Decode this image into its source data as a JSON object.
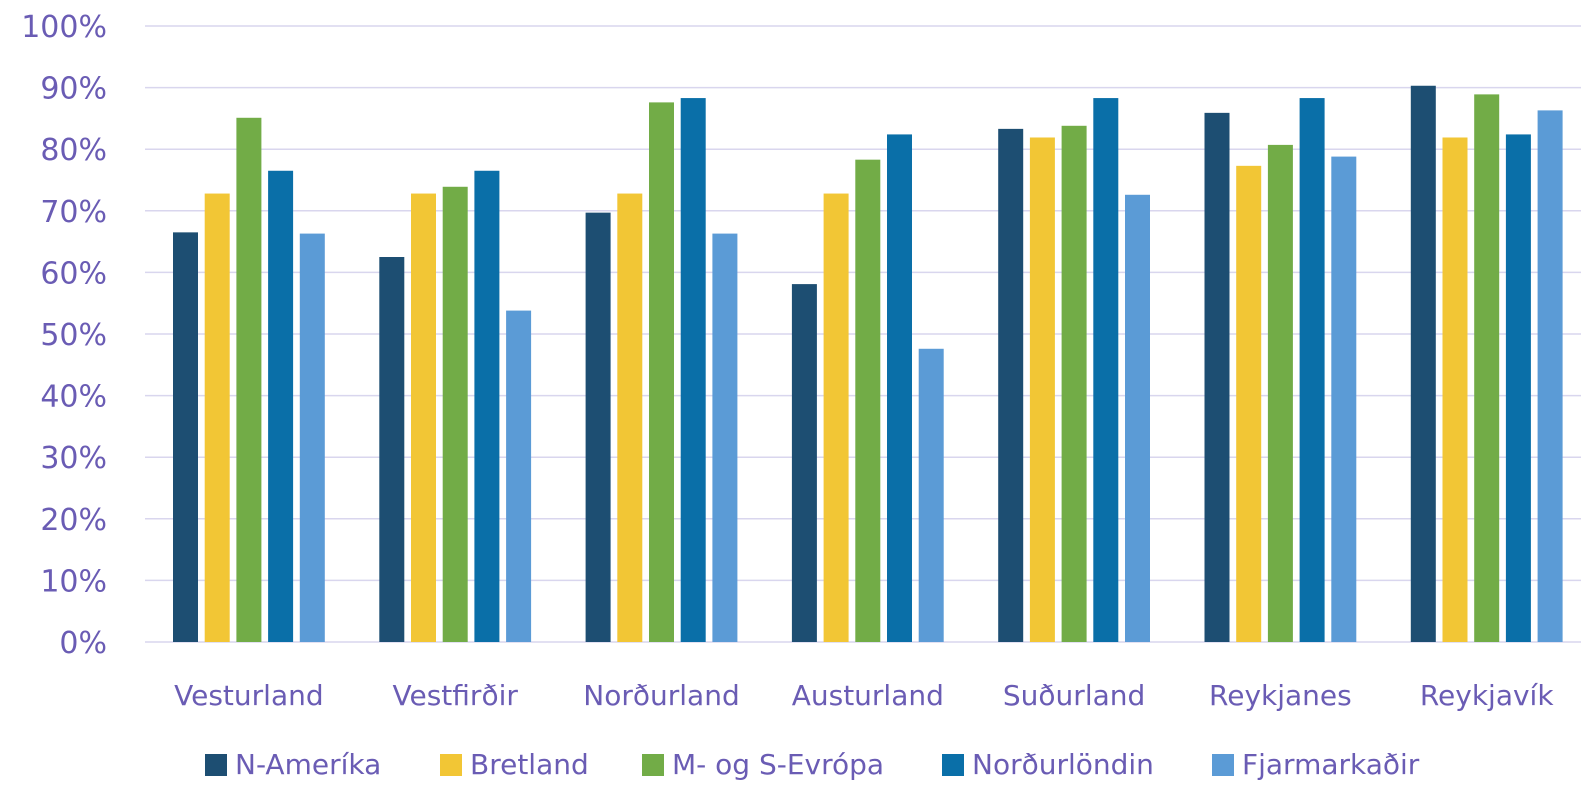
{
  "chart_data": {
    "type": "bar",
    "title": "",
    "xlabel": "",
    "ylabel": "",
    "ylim": [
      0,
      100
    ],
    "y_ticks": [
      "0%",
      "10%",
      "20%",
      "30%",
      "40%",
      "50%",
      "60%",
      "70%",
      "80%",
      "90%",
      "100%"
    ],
    "grid": true,
    "legend_position": "bottom",
    "categories": [
      "Vesturland",
      "Vestfirðir",
      "Norðurland",
      "Austurland",
      "Suðurland",
      "Reykjanes",
      "Reykjavík"
    ],
    "series": [
      {
        "name": "N-Ameríka",
        "color": "#1d4e72",
        "values": [
          66.5,
          62.5,
          69.7,
          58.1,
          83.3,
          85.9,
          90.3
        ]
      },
      {
        "name": "Bretland",
        "color": "#f2c635",
        "values": [
          72.8,
          72.8,
          72.8,
          72.8,
          81.9,
          77.3,
          81.9
        ]
      },
      {
        "name": "M- og S-Evrópa",
        "color": "#72ac47",
        "values": [
          85.1,
          73.9,
          87.6,
          78.3,
          83.8,
          80.7,
          88.9
        ]
      },
      {
        "name": "Norðurlöndin",
        "color": "#0a6fa8",
        "values": [
          76.5,
          76.5,
          88.3,
          82.4,
          88.3,
          88.3,
          82.4
        ]
      },
      {
        "name": "Fjarmarkaðir",
        "color": "#5b9bd6",
        "values": [
          66.3,
          53.8,
          66.3,
          47.6,
          72.6,
          78.8,
          86.3
        ]
      }
    ]
  }
}
